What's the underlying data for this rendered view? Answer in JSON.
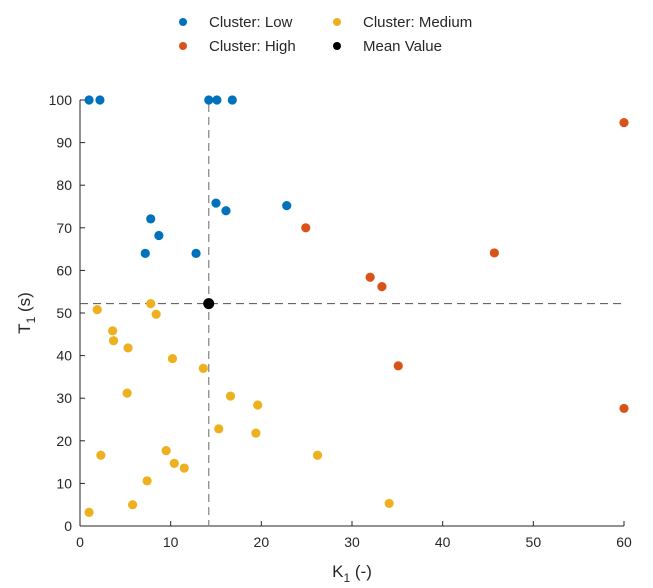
{
  "chart_data": {
    "type": "scatter",
    "xlabel": "K",
    "xlabel_sub": "1",
    "xlabel_suffix": " (-)",
    "ylabel": "T",
    "ylabel_sub": "1",
    "ylabel_suffix": " (s)",
    "xlim": [
      0,
      60
    ],
    "ylim": [
      0,
      100
    ],
    "xticks": [
      0,
      10,
      20,
      30,
      40,
      50,
      60
    ],
    "yticks": [
      0,
      10,
      20,
      30,
      40,
      50,
      60,
      70,
      80,
      90,
      100
    ],
    "grid": false,
    "legend_position": "top",
    "mean_lines": {
      "x": 14.2,
      "y": 52.2
    },
    "series": [
      {
        "name": "Cluster: Low",
        "color": "#0072BD",
        "points": [
          [
            1.0,
            100
          ],
          [
            2.2,
            100
          ],
          [
            14.2,
            100
          ],
          [
            15.1,
            100
          ],
          [
            16.8,
            100
          ],
          [
            15.0,
            75.8
          ],
          [
            16.1,
            74.0
          ],
          [
            22.8,
            75.2
          ],
          [
            7.8,
            72.1
          ],
          [
            8.7,
            68.2
          ],
          [
            7.2,
            64.0
          ],
          [
            12.8,
            64.0
          ]
        ]
      },
      {
        "name": "Cluster: High",
        "color": "#D95319",
        "points": [
          [
            60,
            94.7
          ],
          [
            24.9,
            70.0
          ],
          [
            45.7,
            64.1
          ],
          [
            32.0,
            58.4
          ],
          [
            33.3,
            56.2
          ],
          [
            35.1,
            37.6
          ],
          [
            60,
            27.6
          ]
        ]
      },
      {
        "name": "Cluster: Medium",
        "color": "#EDB120",
        "points": [
          [
            7.8,
            52.2
          ],
          [
            8.4,
            49.7
          ],
          [
            1.9,
            50.8
          ],
          [
            3.6,
            45.8
          ],
          [
            3.7,
            43.5
          ],
          [
            5.3,
            41.8
          ],
          [
            10.2,
            39.3
          ],
          [
            13.6,
            37.0
          ],
          [
            5.2,
            31.2
          ],
          [
            16.6,
            30.5
          ],
          [
            19.6,
            28.4
          ],
          [
            15.3,
            22.8
          ],
          [
            19.4,
            21.8
          ],
          [
            9.5,
            17.7
          ],
          [
            2.3,
            16.6
          ],
          [
            26.2,
            16.6
          ],
          [
            10.4,
            14.7
          ],
          [
            11.5,
            13.6
          ],
          [
            7.4,
            10.6
          ],
          [
            5.8,
            5.0
          ],
          [
            34.1,
            5.3
          ],
          [
            1.0,
            3.2
          ]
        ]
      },
      {
        "name": "Mean Value",
        "color": "#000000",
        "points": [
          [
            14.2,
            52.2
          ]
        ]
      }
    ]
  }
}
